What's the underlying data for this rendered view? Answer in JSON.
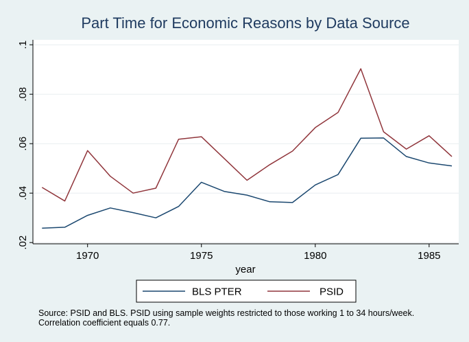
{
  "chart_data": {
    "type": "line",
    "title": "Part Time for Economic Reasons by Data Source",
    "xlabel": "year",
    "ylabel": "",
    "x": [
      1968,
      1969,
      1970,
      1971,
      1972,
      1973,
      1974,
      1975,
      1976,
      1977,
      1978,
      1979,
      1980,
      1981,
      1982,
      1983,
      1984,
      1985,
      1986
    ],
    "xlim": [
      1967.6,
      1986.3
    ],
    "ylim": [
      0.0195,
      0.102
    ],
    "xticks": [
      1970,
      1975,
      1980,
      1985
    ],
    "xtick_labels": [
      "1970",
      "1975",
      "1980",
      "1985"
    ],
    "yticks": [
      0.02,
      0.04,
      0.06,
      0.08,
      0.1
    ],
    "ytick_labels": [
      ".02",
      ".04",
      ".06",
      ".08",
      ".1"
    ],
    "grid": true,
    "legend_position": "bottom",
    "series": [
      {
        "name": "BLS PTER",
        "color": "#1a476f",
        "values": [
          0.0258,
          0.0262,
          0.031,
          0.034,
          0.0321,
          0.03,
          0.0346,
          0.0444,
          0.0407,
          0.0392,
          0.0365,
          0.0362,
          0.0433,
          0.0475,
          0.0622,
          0.0623,
          0.0548,
          0.0522,
          0.051
        ]
      },
      {
        "name": "PSID",
        "color": "#90353b",
        "values": [
          0.0423,
          0.0368,
          0.0572,
          0.0468,
          0.04,
          0.042,
          0.0618,
          0.0628,
          0.054,
          0.0452,
          0.0515,
          0.057,
          0.0665,
          0.0726,
          0.0903,
          0.0648,
          0.0578,
          0.0632,
          0.0548
        ]
      }
    ]
  },
  "note": {
    "line1": "Source: PSID and BLS. PSID using sample weights restricted to those working 1 to 34 hours/week.",
    "line2": "Correlation coefficient equals 0.77."
  }
}
